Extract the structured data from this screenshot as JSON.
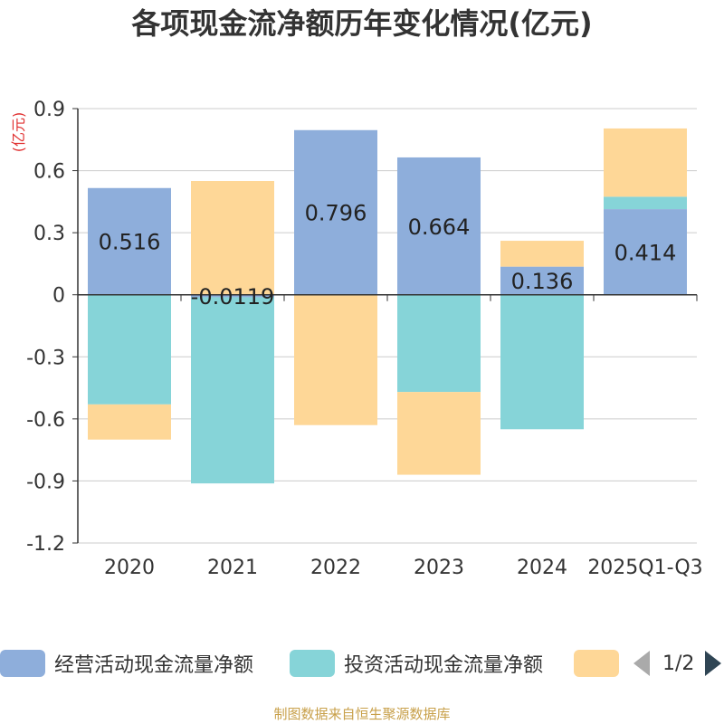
{
  "title": "各项现金流净额历年变化情况(亿元)",
  "source": "制图数据来自恒生聚源数据库",
  "legend": {
    "items": [
      {
        "label": "经营活动现金流量净额",
        "color": "#8eaedb"
      },
      {
        "label": "投资活动现金流量净额",
        "color": "#86d4d8"
      },
      {
        "label": "",
        "color": "#fed797"
      }
    ],
    "page": "1/2"
  },
  "chart_data": {
    "type": "bar",
    "stacked": true,
    "ylabel": "(亿元)",
    "ylim": [
      -1.2,
      0.9
    ],
    "yticks": [
      "0.9",
      "0.6",
      "0.3",
      "0",
      "-0.3",
      "-0.6",
      "-0.9",
      "-1.2"
    ],
    "grid": true,
    "categories": [
      "2020",
      "2021",
      "2022",
      "2023",
      "2024",
      "2025Q1-Q3"
    ],
    "series": [
      {
        "name": "经营活动现金流量净额",
        "color": "#8eaedb",
        "values": [
          0.516,
          -0.0119,
          0.796,
          0.664,
          0.136,
          0.414
        ],
        "labels": [
          "0.516",
          "-0.0119",
          "0.796",
          "0.664",
          "0.136",
          "0.414"
        ]
      },
      {
        "name": "投资活动现金流量净额",
        "color": "#86d4d8",
        "values": [
          -0.53,
          -0.9,
          0,
          -0.47,
          -0.65,
          0.06
        ]
      },
      {
        "color": "#fed797",
        "values": [
          -0.17,
          0.55,
          -0.63,
          -0.4,
          0.125,
          0.33
        ]
      }
    ]
  }
}
